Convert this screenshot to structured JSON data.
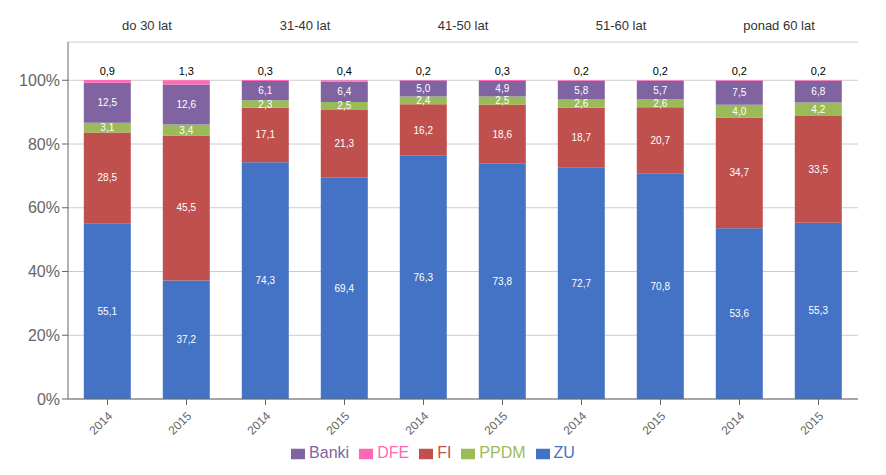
{
  "chart_data": {
    "type": "bar",
    "stacked": true,
    "data_labels": true,
    "grid": true,
    "legend": "bottom",
    "categories": [
      "2014",
      "2015",
      "2014",
      "2015",
      "2014",
      "2015",
      "2014",
      "2015",
      "2014",
      "2015"
    ],
    "annotations": [
      "do 30 lat",
      "31-40 lat",
      "41-50 lat",
      "51-60 lat",
      "ponad 60 lat"
    ],
    "ylim": [
      0,
      112
    ],
    "yticks": [
      {
        "value": 0,
        "label": "0%"
      },
      {
        "value": 20,
        "label": "20%"
      },
      {
        "value": 40,
        "label": "40%"
      },
      {
        "value": 60,
        "label": "60%"
      },
      {
        "value": 80,
        "label": "80%"
      },
      {
        "value": 100,
        "label": "100%"
      }
    ],
    "series": [
      {
        "name": "ZU",
        "color": "#4472C4",
        "values": [
          55.1,
          37.2,
          74.3,
          69.4,
          76.3,
          73.8,
          72.7,
          70.8,
          53.6,
          55.3
        ],
        "value_labels": [
          "55,1",
          "37,2",
          "74,3",
          "69,4",
          "76,3",
          "73,8",
          "72,7",
          "70,8",
          "53,6",
          "55,3"
        ]
      },
      {
        "name": "FI",
        "color": "#C0504D",
        "values": [
          28.5,
          45.5,
          17.1,
          21.3,
          16.2,
          18.6,
          18.7,
          20.7,
          34.7,
          33.5
        ],
        "value_labels": [
          "28,5",
          "45,5",
          "17,1",
          "21,3",
          "16,2",
          "18,6",
          "18,7",
          "20,7",
          "34,7",
          "33,5"
        ]
      },
      {
        "name": "PPDM",
        "color": "#9BBB59",
        "values": [
          3.1,
          3.4,
          2.3,
          2.5,
          2.4,
          2.5,
          2.6,
          2.6,
          4.0,
          4.2
        ],
        "value_labels": [
          "3,1",
          "3,4",
          "2,3",
          "2,5",
          "2,4",
          "2,5",
          "2,6",
          "2,6",
          "4,0",
          "4,2"
        ]
      },
      {
        "name": "Banki",
        "color": "#8064A2",
        "values": [
          12.5,
          12.6,
          6.1,
          6.4,
          5.0,
          4.9,
          5.8,
          5.7,
          7.5,
          6.8
        ],
        "value_labels": [
          "12,5",
          "12,6",
          "6,1",
          "6,4",
          "5,0",
          "4,9",
          "5,8",
          "5,7",
          "7,5",
          "6,8"
        ]
      },
      {
        "name": "DFE",
        "color": "#FF69B4",
        "values": [
          0.9,
          1.3,
          0.3,
          0.4,
          0.2,
          0.3,
          0.2,
          0.2,
          0.2,
          0.2
        ],
        "value_labels": [
          "0,9",
          "1,3",
          "0,3",
          "0,4",
          "0,2",
          "0,3",
          "0,2",
          "0,2",
          "0,2",
          "0,2"
        ]
      }
    ]
  }
}
